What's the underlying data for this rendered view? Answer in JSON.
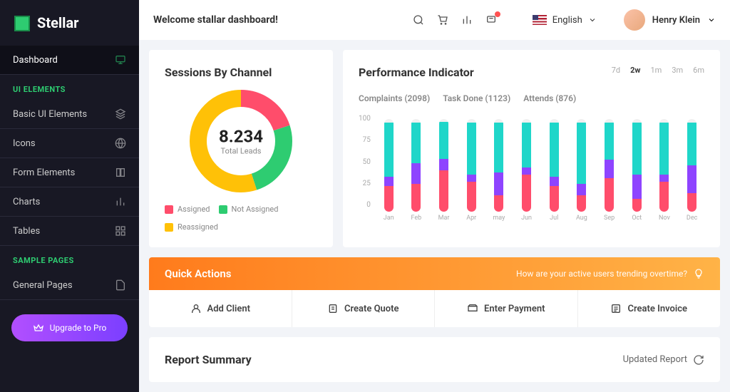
{
  "brand": "Stellar",
  "header": {
    "welcome": "Welcome stallar dashboard!",
    "language": "English",
    "user": "Henry Klein"
  },
  "sidebar": {
    "items": [
      {
        "label": "Dashboard",
        "active": true
      },
      {
        "label": "Basic UI Elements"
      },
      {
        "label": "Icons"
      },
      {
        "label": "Form Elements"
      },
      {
        "label": "Charts"
      },
      {
        "label": "Tables"
      },
      {
        "label": "General Pages"
      }
    ],
    "sections": {
      "ui": "UI ELEMENTS",
      "sample": "SAMPLE PAGES"
    },
    "upgrade": "Upgrade to Pro"
  },
  "donut": {
    "title": "Sessions By Channel",
    "value": "8.234",
    "subtitle": "Total Leads",
    "segments": [
      {
        "color": "#ff4d6b",
        "pct": 20,
        "label": "Assigned"
      },
      {
        "color": "#2ecc71",
        "pct": 25,
        "label": "Not Assigned"
      },
      {
        "color": "#ffc107",
        "pct": 55,
        "label": "Reassigned"
      }
    ],
    "thickness": 24
  },
  "perf": {
    "title": "Performance Indicator",
    "range": [
      "7d",
      "2w",
      "1m",
      "3m",
      "6m"
    ],
    "range_active": "2w",
    "meta": [
      "Complaints (2098)",
      "Task Done (1123)",
      "Attends (876)"
    ],
    "ymax": 100,
    "yticks": [
      100,
      75,
      50,
      25,
      0
    ],
    "months": [
      "Jan",
      "Feb",
      "Mar",
      "Apr",
      "may",
      "Jun",
      "Jul",
      "Aug",
      "Sep",
      "Oct",
      "Nov",
      "Dec"
    ],
    "colors": {
      "a": "#ff4d6b",
      "b": "#8e44ff",
      "c": "#1fd6c9"
    },
    "series": [
      {
        "a": 28,
        "b": 10,
        "c": 58
      },
      {
        "a": 30,
        "b": 22,
        "c": 44
      },
      {
        "a": 45,
        "b": 12,
        "c": 40
      },
      {
        "a": 32,
        "b": 8,
        "c": 56
      },
      {
        "a": 18,
        "b": 24,
        "c": 54
      },
      {
        "a": 40,
        "b": 8,
        "c": 48
      },
      {
        "a": 28,
        "b": 10,
        "c": 58
      },
      {
        "a": 18,
        "b": 12,
        "c": 66
      },
      {
        "a": 36,
        "b": 20,
        "c": 40
      },
      {
        "a": 14,
        "b": 26,
        "c": 56
      },
      {
        "a": 32,
        "b": 8,
        "c": 56
      },
      {
        "a": 20,
        "b": 30,
        "c": 46
      }
    ]
  },
  "quick": {
    "title": "Quick Actions",
    "subtitle": "How are your active users trending overtime?",
    "items": [
      "Add Client",
      "Create Quote",
      "Enter Payment",
      "Create Invoice"
    ]
  },
  "report": {
    "title": "Report Summary",
    "updated": "Updated Report"
  }
}
